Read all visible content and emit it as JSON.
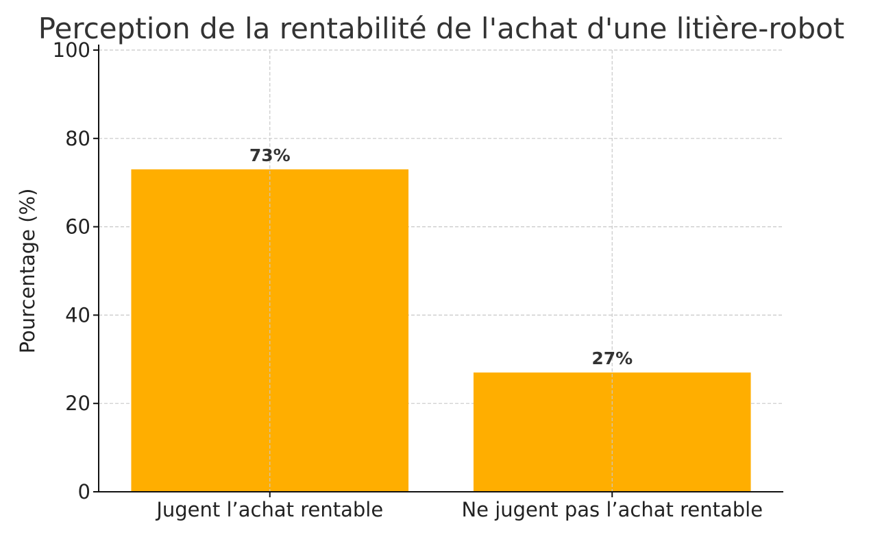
{
  "chart_data": {
    "type": "bar",
    "title": "Perception de la rentabilité de l'achat d'une litière-robot",
    "xlabel": "",
    "ylabel": "Pourcentage (%)",
    "categories": [
      "Jugent l’achat rentable",
      "Ne jugent pas l’achat rentable"
    ],
    "values": [
      73,
      27
    ],
    "data_labels": [
      "73%",
      "27%"
    ],
    "ylim": [
      0,
      100
    ],
    "yticks": [
      0,
      20,
      40,
      60,
      80,
      100
    ],
    "ytick_labels": [
      "0",
      "20",
      "40",
      "60",
      "80",
      "100"
    ],
    "grid": true,
    "legend": "none",
    "bar_color": "#FFAE00"
  }
}
